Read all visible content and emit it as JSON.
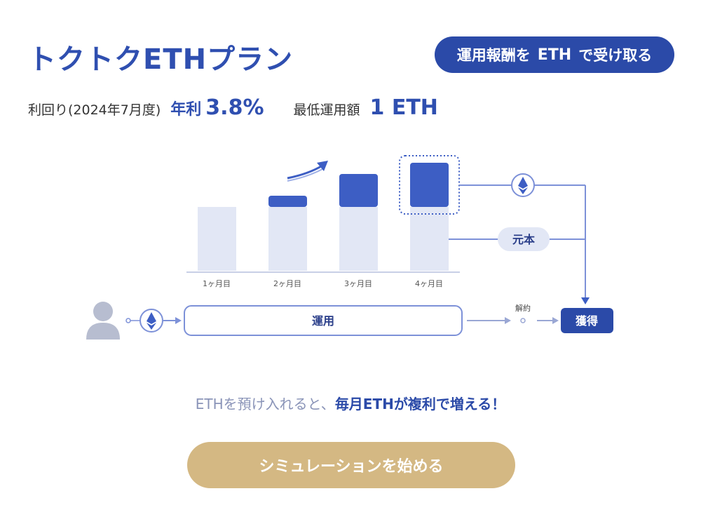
{
  "header": {
    "title": "トクトクETHプラン",
    "badge": {
      "part1": "運用報酬を",
      "part2": "ETH",
      "part3": "で受け取る"
    }
  },
  "stats": {
    "yield_label": "利回り(2024年7月度)",
    "yield_prefix": "年利",
    "yield_value": "3.8%",
    "min_label": "最低運用額",
    "min_value": "1 ETH"
  },
  "diagram": {
    "months": [
      "1ヶ月目",
      "2ヶ月目",
      "3ヶ月目",
      "4ヶ月目"
    ],
    "principal_label": "元本",
    "operation_label": "運用",
    "cancel_label": "解約",
    "obtain_label": "獲得",
    "colors": {
      "accent": "#2b4aa8",
      "bar_base": "#e2e7f5",
      "bar_gain": "#3d5ec4",
      "line": "#7d91d8"
    },
    "icons": [
      "user-icon",
      "ethereum-icon",
      "trend-arrow-icon"
    ]
  },
  "tagline": {
    "normal": "ETHを預け入れると、",
    "strong": "毎月ETHが複利で増える！"
  },
  "cta": {
    "label": "シミュレーションを始める"
  }
}
